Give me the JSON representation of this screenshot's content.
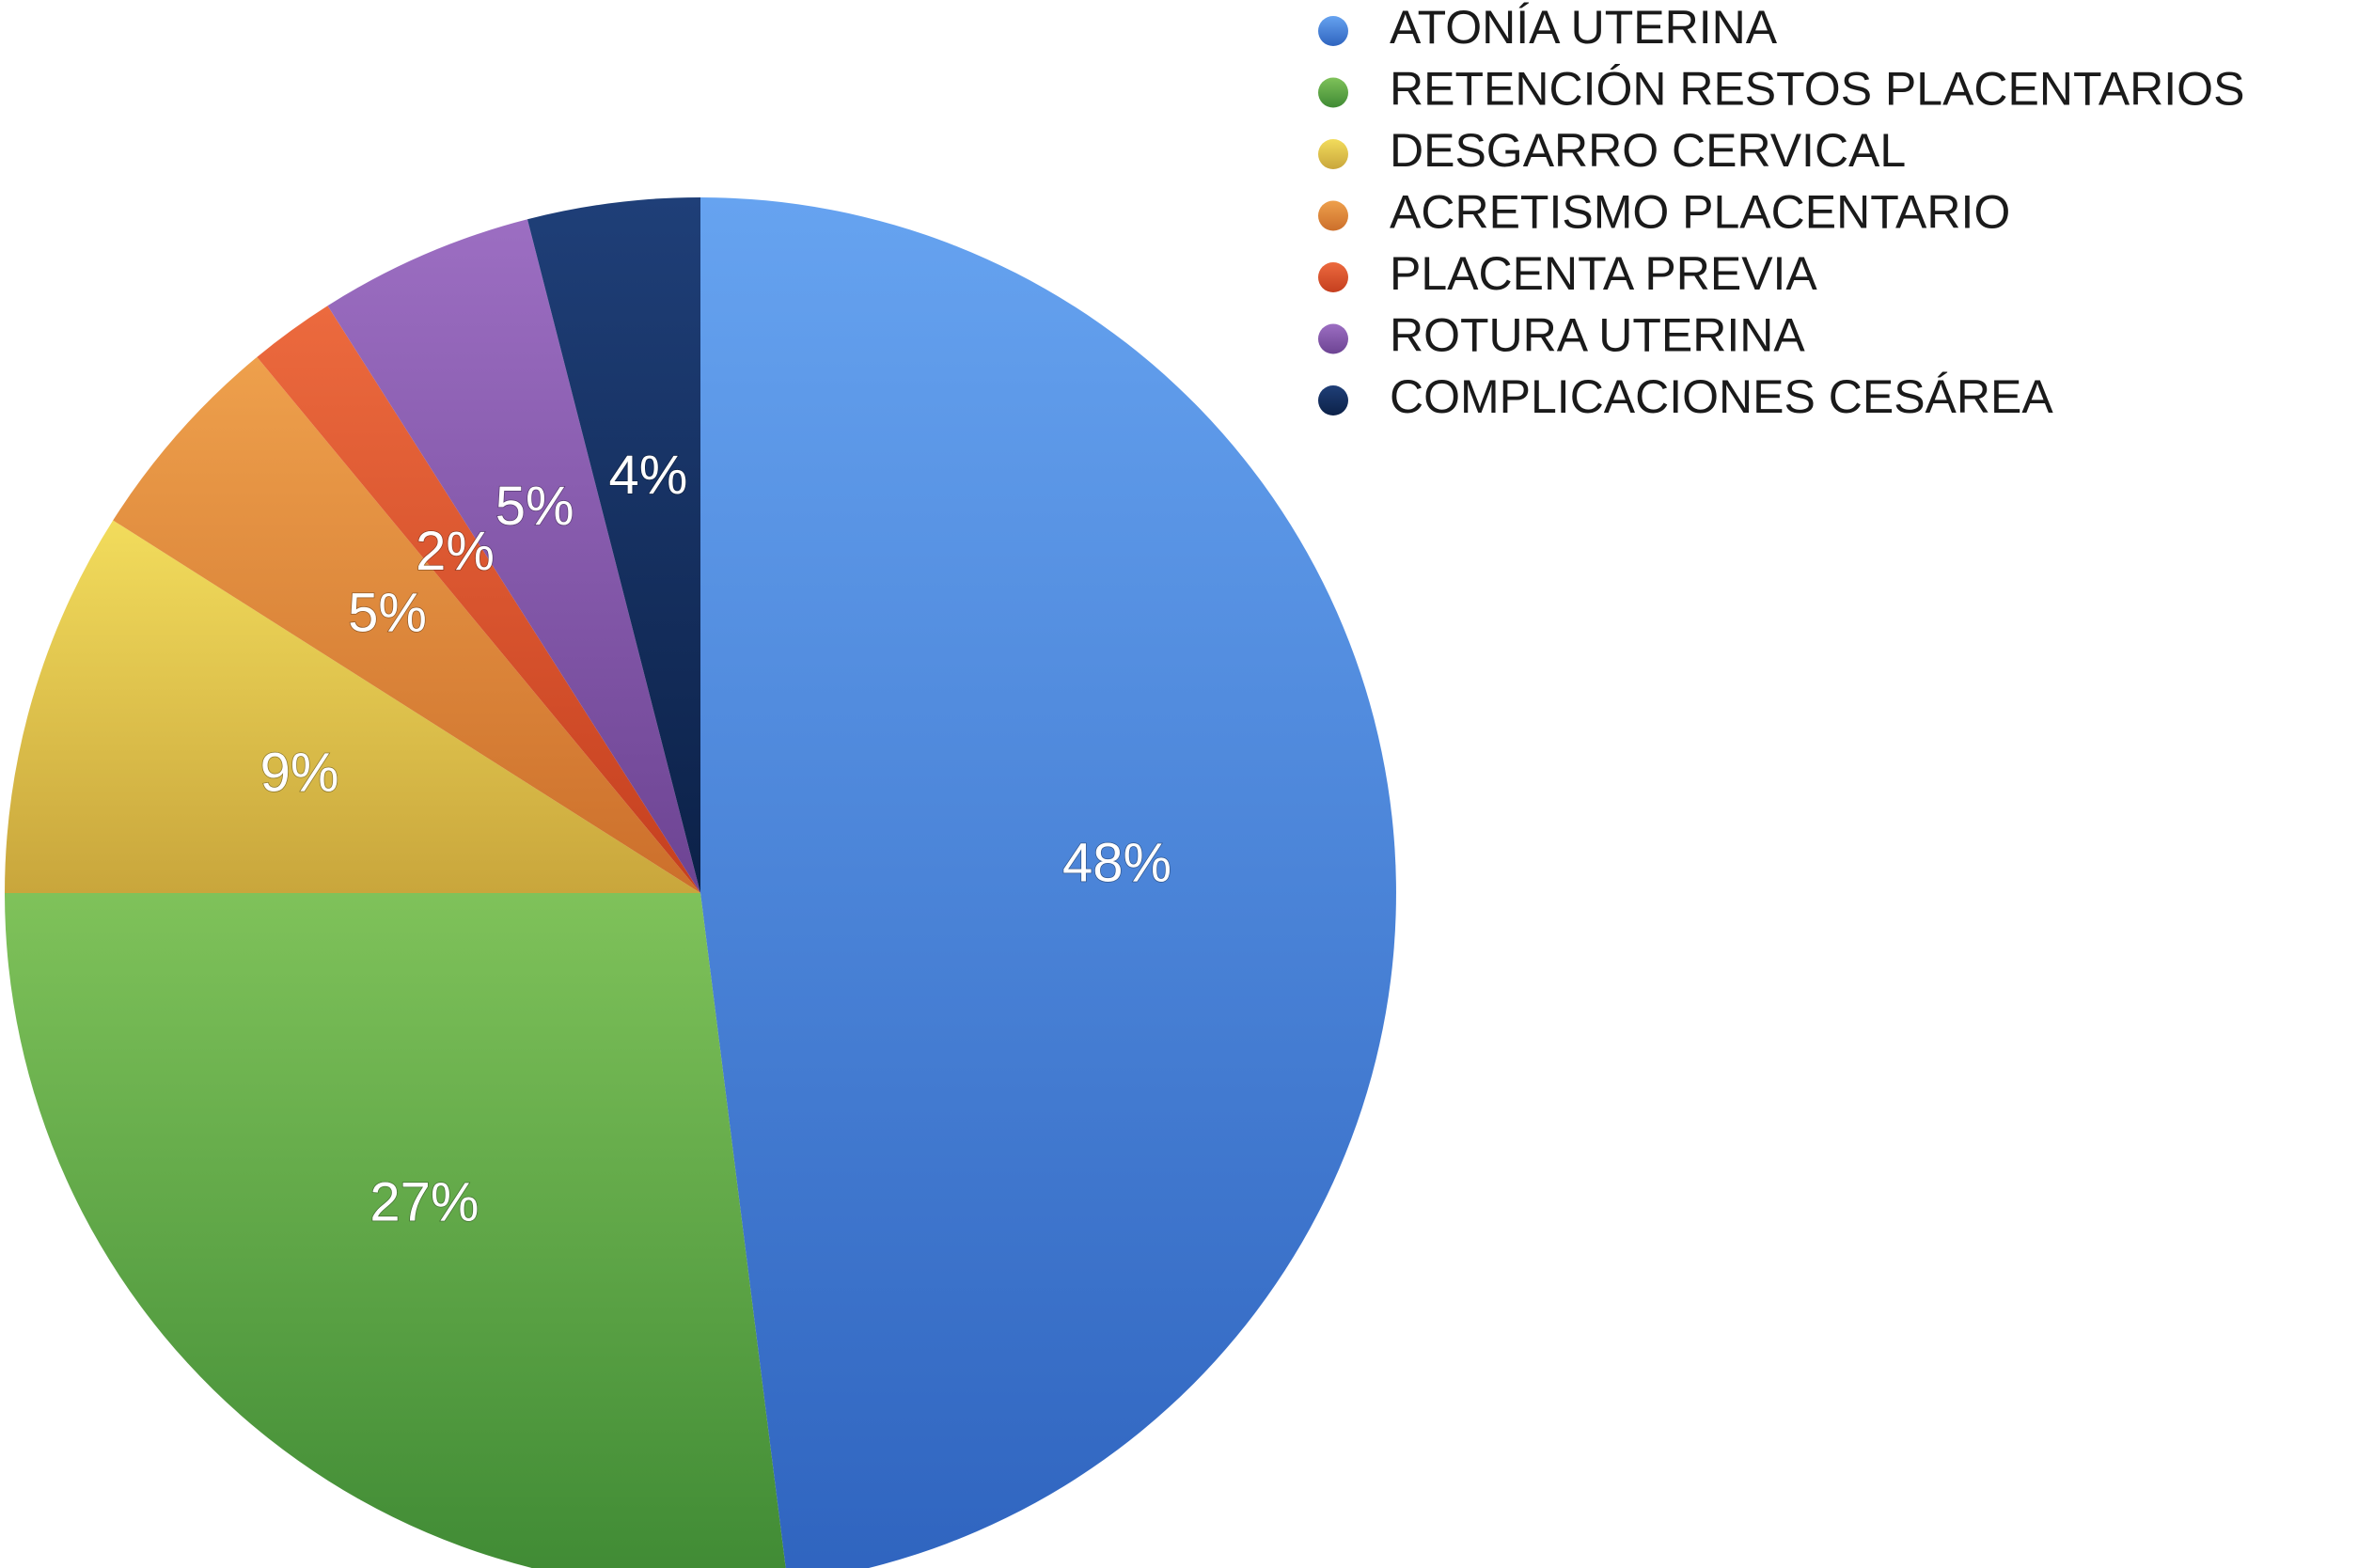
{
  "chart_data": {
    "type": "pie",
    "title": "",
    "start_angle_deg": 0,
    "direction": "clockwise",
    "legend_position": "top-right",
    "slices": [
      {
        "label": "ATONÍA UTERINA",
        "value": 48,
        "display": "48%",
        "color": "#4a87dc",
        "color_light": "#66a3f0",
        "color_dark": "#2f64bf"
      },
      {
        "label": "RETENCIÓN RESTOS PLACENTARIOS",
        "value": 27,
        "display": "27%",
        "color": "#5fab45",
        "color_light": "#7fc25a",
        "color_dark": "#3f8a34"
      },
      {
        "label": "DESGARRO CERVICAL",
        "value": 9,
        "display": "9%",
        "color": "#e2c04a",
        "color_light": "#f2dc5c",
        "color_dark": "#c9a63c"
      },
      {
        "label": "ACRETISMO PLACENTARIO",
        "value": 5,
        "display": "5%",
        "color": "#e38a3c",
        "color_light": "#eea04c",
        "color_dark": "#cc6f2b"
      },
      {
        "label": "PLACENTA PREVIA",
        "value": 2,
        "display": "2%",
        "color": "#e0522c",
        "color_light": "#ec6a3e",
        "color_dark": "#c53f1f"
      },
      {
        "label": "ROTURA UTERINA",
        "value": 5,
        "display": "5%",
        "color": "#8a5aae",
        "color_light": "#9c6ec2",
        "color_dark": "#6d4493"
      },
      {
        "label": "COMPLICACIONES CESÁREA",
        "value": 4,
        "display": "4%",
        "color": "#16305e",
        "color_light": "#1f3f78",
        "color_dark": "#0c2148"
      }
    ]
  }
}
